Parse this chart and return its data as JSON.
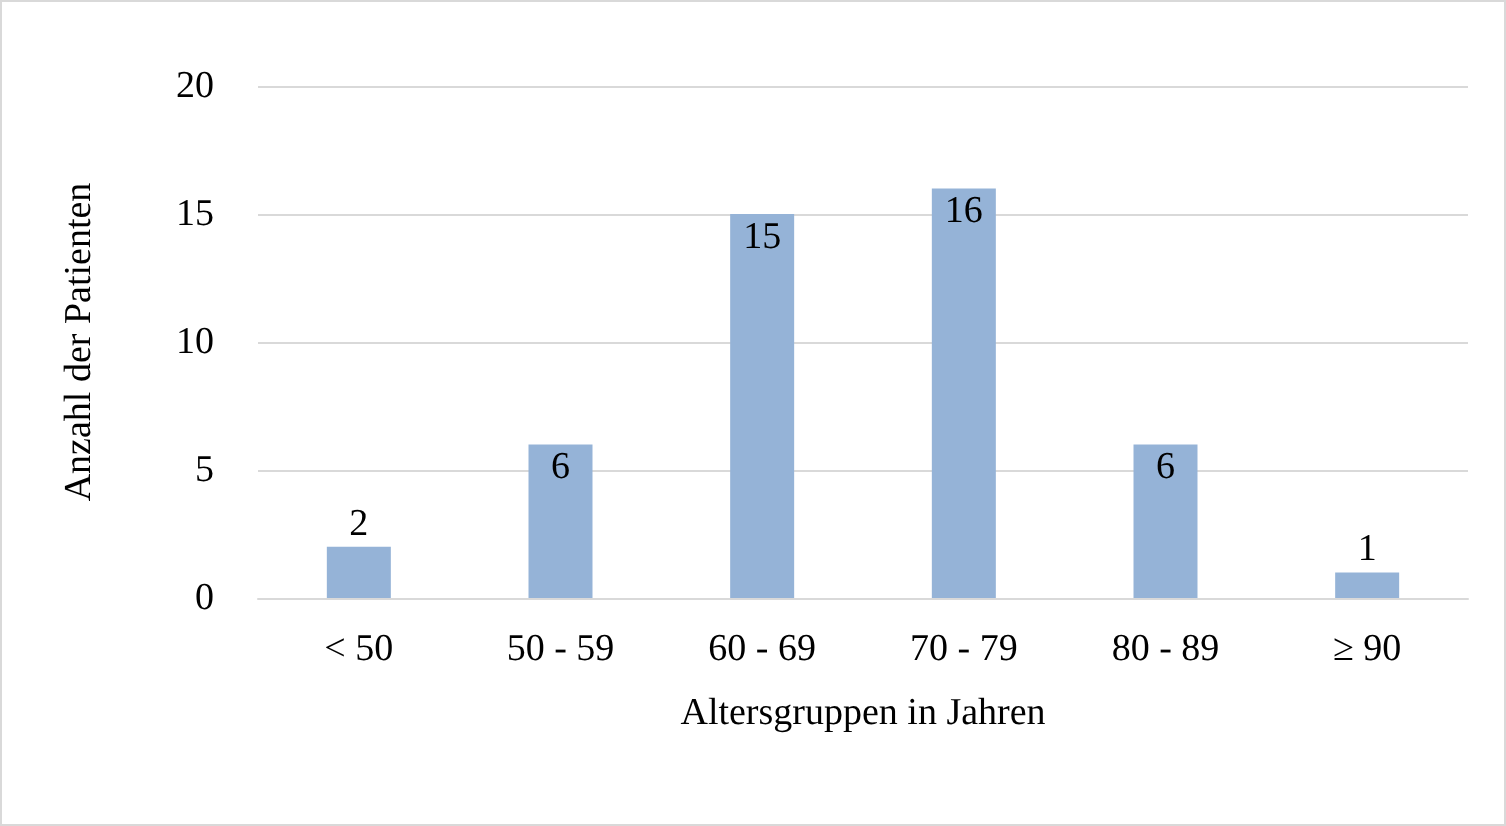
{
  "chart_data": {
    "type": "bar",
    "xlabel": "Altersgruppen in Jahren",
    "ylabel": "Anzahl der Patienten",
    "categories": [
      "< 50",
      "50 - 59",
      "60 - 69",
      "70 - 79",
      "80 - 89",
      "≥ 90"
    ],
    "values": [
      2,
      6,
      15,
      16,
      6,
      1
    ],
    "color": "#95b3d7",
    "ylim": [
      0,
      20
    ],
    "yticks": [
      0,
      5,
      10,
      15,
      20
    ],
    "grid": "y",
    "data_labels": true
  }
}
